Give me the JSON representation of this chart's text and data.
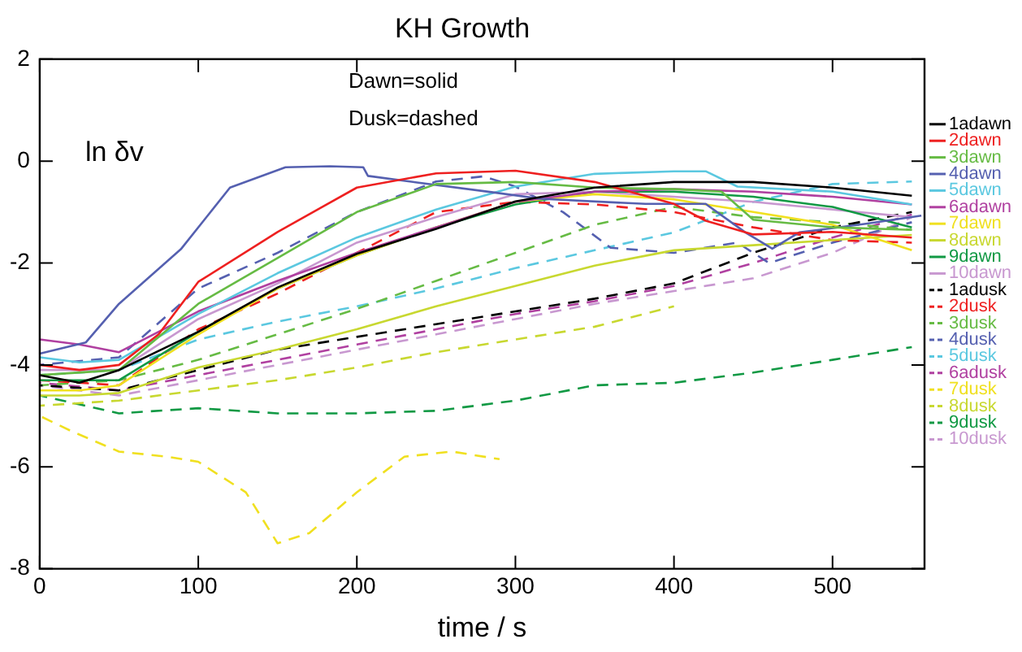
{
  "chart_data": {
    "type": "line",
    "title": "KH Growth",
    "xlabel": "time / s",
    "ylabel": "ln δv",
    "annotations": [
      "Dawn=solid",
      "Dusk=dashed"
    ],
    "xlim": [
      0,
      558
    ],
    "ylim": [
      -8,
      2
    ],
    "xticks": [
      0,
      100,
      200,
      300,
      400,
      500
    ],
    "yticks": [
      -8,
      -6,
      -4,
      -2,
      0,
      2
    ],
    "grid": false,
    "legend": "right",
    "marker": "none",
    "series": [
      {
        "name": "1adawn",
        "color": "#000000",
        "line_style": "solid",
        "x": [
          0,
          25,
          50,
          100,
          150,
          200,
          250,
          300,
          350,
          400,
          450,
          500,
          550
        ],
        "values": [
          -4.2,
          -4.35,
          -4.1,
          -3.35,
          -2.48,
          -1.82,
          -1.33,
          -0.79,
          -0.52,
          -0.41,
          -0.41,
          -0.52,
          -0.68
        ]
      },
      {
        "name": "2dawn",
        "color": "#ee2020",
        "line_style": "solid",
        "x": [
          0,
          25,
          50,
          75,
          100,
          150,
          200,
          250,
          300,
          350,
          400,
          420,
          450,
          500,
          550
        ],
        "values": [
          -4.0,
          -4.1,
          -4.0,
          -3.4,
          -2.37,
          -1.39,
          -0.52,
          -0.24,
          -0.19,
          -0.41,
          -0.84,
          -1.17,
          -1.44,
          -1.39,
          -1.5
        ]
      },
      {
        "name": "3dawn",
        "color": "#66bb44",
        "line_style": "solid",
        "x": [
          0,
          50,
          100,
          150,
          200,
          250,
          300,
          350,
          400,
          430,
          450,
          500,
          550
        ],
        "values": [
          -4.2,
          -4.1,
          -2.8,
          -1.9,
          -1.0,
          -0.45,
          -0.41,
          -0.52,
          -0.55,
          -0.6,
          -1.15,
          -1.3,
          -1.35
        ]
      },
      {
        "name": "4dawn",
        "color": "#5560b0",
        "line_style": "solid",
        "x": [
          0,
          29,
          50,
          89,
          120,
          155,
          183,
          204,
          207,
          238,
          285,
          316,
          382,
          420,
          445,
          462,
          479,
          521,
          556
        ],
        "values": [
          -3.78,
          -3.56,
          -2.8,
          -1.73,
          -0.52,
          -0.12,
          -0.1,
          -0.12,
          -0.29,
          -0.42,
          -0.61,
          -0.74,
          -0.84,
          -0.84,
          -1.4,
          -1.72,
          -1.4,
          -1.23,
          -1.07
        ]
      },
      {
        "name": "5dawn",
        "color": "#5bc8e0",
        "line_style": "solid",
        "x": [
          0,
          25,
          50,
          100,
          150,
          200,
          250,
          300,
          350,
          400,
          420,
          440,
          500,
          550
        ],
        "values": [
          -3.85,
          -3.95,
          -3.9,
          -3.0,
          -2.2,
          -1.5,
          -0.95,
          -0.5,
          -0.25,
          -0.2,
          -0.2,
          -0.5,
          -0.6,
          -0.85
        ]
      },
      {
        "name": "6adawn",
        "color": "#b040a0",
        "line_style": "solid",
        "x": [
          0,
          25,
          50,
          100,
          150,
          200,
          250,
          300,
          350,
          400,
          450,
          500,
          550
        ],
        "values": [
          -3.5,
          -3.6,
          -3.75,
          -2.95,
          -2.35,
          -1.8,
          -1.3,
          -0.8,
          -0.6,
          -0.55,
          -0.6,
          -0.7,
          -0.85
        ]
      },
      {
        "name": "7dawn",
        "color": "#f0e020",
        "line_style": "solid",
        "x": [
          0,
          25,
          50,
          100,
          150,
          200,
          250,
          300,
          350,
          400,
          450,
          500,
          550
        ],
        "values": [
          -4.5,
          -4.5,
          -4.4,
          -3.4,
          -2.5,
          -1.85,
          -1.3,
          -0.8,
          -0.65,
          -0.75,
          -1.0,
          -1.25,
          -1.75
        ]
      },
      {
        "name": "8dawn",
        "color": "#c8d830",
        "line_style": "solid",
        "x": [
          0,
          25,
          50,
          100,
          150,
          200,
          250,
          300,
          350,
          400,
          450,
          500,
          550
        ],
        "values": [
          -4.6,
          -4.6,
          -4.55,
          -4.05,
          -3.7,
          -3.3,
          -2.85,
          -2.45,
          -2.05,
          -1.75,
          -1.65,
          -1.55,
          -1.45
        ]
      },
      {
        "name": "9dawn",
        "color": "#119944",
        "line_style": "solid",
        "x": [
          0,
          50,
          100,
          150,
          200,
          250,
          300,
          350,
          400,
          450,
          500,
          550
        ],
        "values": [
          -4.3,
          -4.3,
          -3.35,
          -2.5,
          -1.85,
          -1.3,
          -0.85,
          -0.6,
          -0.6,
          -0.7,
          -0.9,
          -1.3
        ]
      },
      {
        "name": "10dawn",
        "color": "#c898d0",
        "line_style": "solid",
        "x": [
          0,
          50,
          100,
          150,
          200,
          250,
          300,
          350,
          400,
          450,
          500,
          550
        ],
        "values": [
          -4.1,
          -4.1,
          -3.1,
          -2.4,
          -1.6,
          -1.1,
          -0.65,
          -0.6,
          -0.7,
          -0.8,
          -0.95,
          -1.1
        ]
      },
      {
        "name": "1adusk",
        "color": "#000000",
        "line_style": "dashed",
        "x": [
          0,
          50,
          100,
          150,
          200,
          250,
          300,
          350,
          400,
          450,
          500,
          550
        ],
        "values": [
          -4.4,
          -4.5,
          -4.1,
          -3.7,
          -3.45,
          -3.2,
          -2.95,
          -2.7,
          -2.4,
          -1.8,
          -1.3,
          -1.0
        ]
      },
      {
        "name": "2dusk",
        "color": "#ee2020",
        "line_style": "dashed",
        "x": [
          0,
          50,
          100,
          150,
          200,
          250,
          300,
          350,
          400,
          450,
          500,
          550
        ],
        "values": [
          -4.3,
          -4.4,
          -3.3,
          -2.6,
          -1.8,
          -1.0,
          -0.8,
          -0.85,
          -1.0,
          -1.3,
          -1.55,
          -1.6
        ]
      },
      {
        "name": "3dusk",
        "color": "#66bb44",
        "line_style": "dashed",
        "x": [
          0,
          50,
          100,
          150,
          200,
          250,
          300,
          350,
          400,
          450,
          500,
          550
        ],
        "values": [
          -4.4,
          -4.3,
          -3.9,
          -3.4,
          -2.9,
          -2.35,
          -1.8,
          -1.25,
          -0.9,
          -1.1,
          -1.2,
          -1.35
        ]
      },
      {
        "name": "4dusk",
        "color": "#5560b0",
        "line_style": "dashed",
        "x": [
          0,
          50,
          100,
          150,
          200,
          250,
          280,
          300,
          330,
          360,
          400,
          440,
          460,
          500,
          550
        ],
        "values": [
          -4.0,
          -3.85,
          -2.5,
          -1.8,
          -1.0,
          -0.4,
          -0.3,
          -0.5,
          -1.0,
          -1.7,
          -1.8,
          -1.6,
          -2.0,
          -1.6,
          -1.2
        ]
      },
      {
        "name": "5dusk",
        "color": "#5bc8e0",
        "line_style": "dashed",
        "x": [
          0,
          50,
          100,
          150,
          200,
          250,
          300,
          350,
          400,
          450,
          500,
          550
        ],
        "values": [
          -4.2,
          -4.1,
          -3.5,
          -3.15,
          -2.85,
          -2.5,
          -2.1,
          -1.75,
          -1.4,
          -0.8,
          -0.45,
          -0.4
        ]
      },
      {
        "name": "6adusk",
        "color": "#b040a0",
        "line_style": "dashed",
        "x": [
          0,
          50,
          100,
          150,
          200,
          250,
          300,
          350,
          400,
          450,
          500,
          550
        ],
        "values": [
          -4.35,
          -4.5,
          -4.2,
          -3.9,
          -3.6,
          -3.3,
          -3.0,
          -2.75,
          -2.45,
          -2.0,
          -1.5,
          -1.05
        ]
      },
      {
        "name": "7dusk",
        "color": "#f0e020",
        "line_style": "dashed",
        "x": [
          0,
          20,
          50,
          80,
          100,
          130,
          150,
          170,
          200,
          230,
          260,
          290
        ],
        "values": [
          -5.0,
          -5.3,
          -5.7,
          -5.8,
          -5.9,
          -6.5,
          -7.5,
          -7.3,
          -6.5,
          -5.8,
          -5.7,
          -5.85
        ]
      },
      {
        "name": "8dusk",
        "color": "#c8d830",
        "line_style": "dashed",
        "x": [
          0,
          50,
          100,
          150,
          200,
          250,
          300,
          350,
          400
        ],
        "values": [
          -4.8,
          -4.7,
          -4.5,
          -4.3,
          -4.05,
          -3.75,
          -3.5,
          -3.25,
          -2.85
        ]
      },
      {
        "name": "9dusk",
        "color": "#119944",
        "line_style": "dashed",
        "x": [
          0,
          50,
          100,
          150,
          200,
          250,
          300,
          350,
          400,
          450,
          500,
          550
        ],
        "values": [
          -4.6,
          -4.95,
          -4.85,
          -4.95,
          -4.95,
          -4.9,
          -4.7,
          -4.4,
          -4.35,
          -4.15,
          -3.9,
          -3.65
        ]
      },
      {
        "name": "10dusk",
        "color": "#c898d0",
        "line_style": "dashed",
        "x": [
          0,
          50,
          100,
          150,
          200,
          250,
          300,
          350,
          400,
          450,
          500,
          550
        ],
        "values": [
          -4.4,
          -4.6,
          -4.3,
          -4.0,
          -3.7,
          -3.4,
          -3.1,
          -2.8,
          -2.55,
          -2.3,
          -1.8,
          -1.1
        ]
      }
    ]
  }
}
